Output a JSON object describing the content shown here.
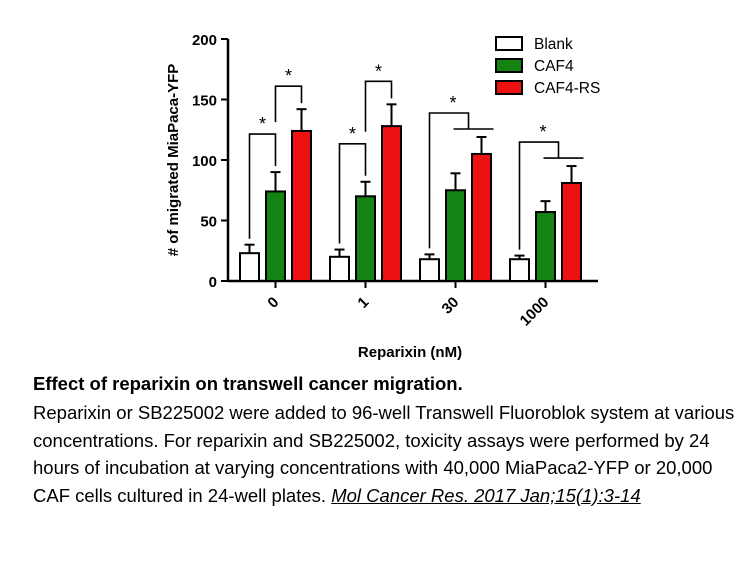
{
  "chart_data": {
    "type": "bar",
    "categories": [
      "0",
      "1",
      "30",
      "1000"
    ],
    "series": [
      {
        "name": "Blank",
        "values": [
          23,
          20,
          18,
          18
        ],
        "errors": [
          7,
          6,
          4,
          3
        ],
        "color": "#ffffff"
      },
      {
        "name": "CAF4",
        "values": [
          74,
          70,
          75,
          57
        ],
        "errors": [
          16,
          12,
          14,
          9
        ],
        "color": "#138313"
      },
      {
        "name": "CAF4-RS",
        "values": [
          124,
          128,
          105,
          81
        ],
        "errors": [
          18,
          18,
          14,
          14
        ],
        "color": "#ee1111"
      }
    ],
    "xlabel": "Reparixin (nM)",
    "ylabel": "# of migrated MiaPaca-YFP",
    "ylim": [
      0,
      200
    ],
    "yticks": [
      0,
      50,
      100,
      150,
      200
    ],
    "legend_position": "top-right",
    "annotations": [
      {
        "category": "0",
        "label": "*",
        "comparison": "Blank vs CAF4"
      },
      {
        "category": "0",
        "label": "*",
        "comparison": "CAF4 vs CAF4-RS"
      },
      {
        "category": "1",
        "label": "*",
        "comparison": "Blank vs CAF4"
      },
      {
        "category": "1",
        "label": "*",
        "comparison": "CAF4 vs CAF4-RS"
      },
      {
        "category": "30",
        "label": "*",
        "comparison": "Blank vs CAF4/CAF4-RS"
      },
      {
        "category": "1000",
        "label": "*",
        "comparison": "Blank vs CAF4/CAF4-RS"
      }
    ]
  },
  "caption": {
    "title": "Effect of reparixin on transwell cancer migration.",
    "body": "Reparixin or SB225002 were added to 96-well Transwell Fluoroblok system at various concentrations. For reparixin and SB225002, toxicity assays were performed by 24 hours of incubation at varying concentrations with 40,000 MiaPaca2-YFP or 20,000 CAF cells cultured in 24-well plates.",
    "citation": "Mol Cancer Res. 2017 Jan;15(1):3-14"
  }
}
